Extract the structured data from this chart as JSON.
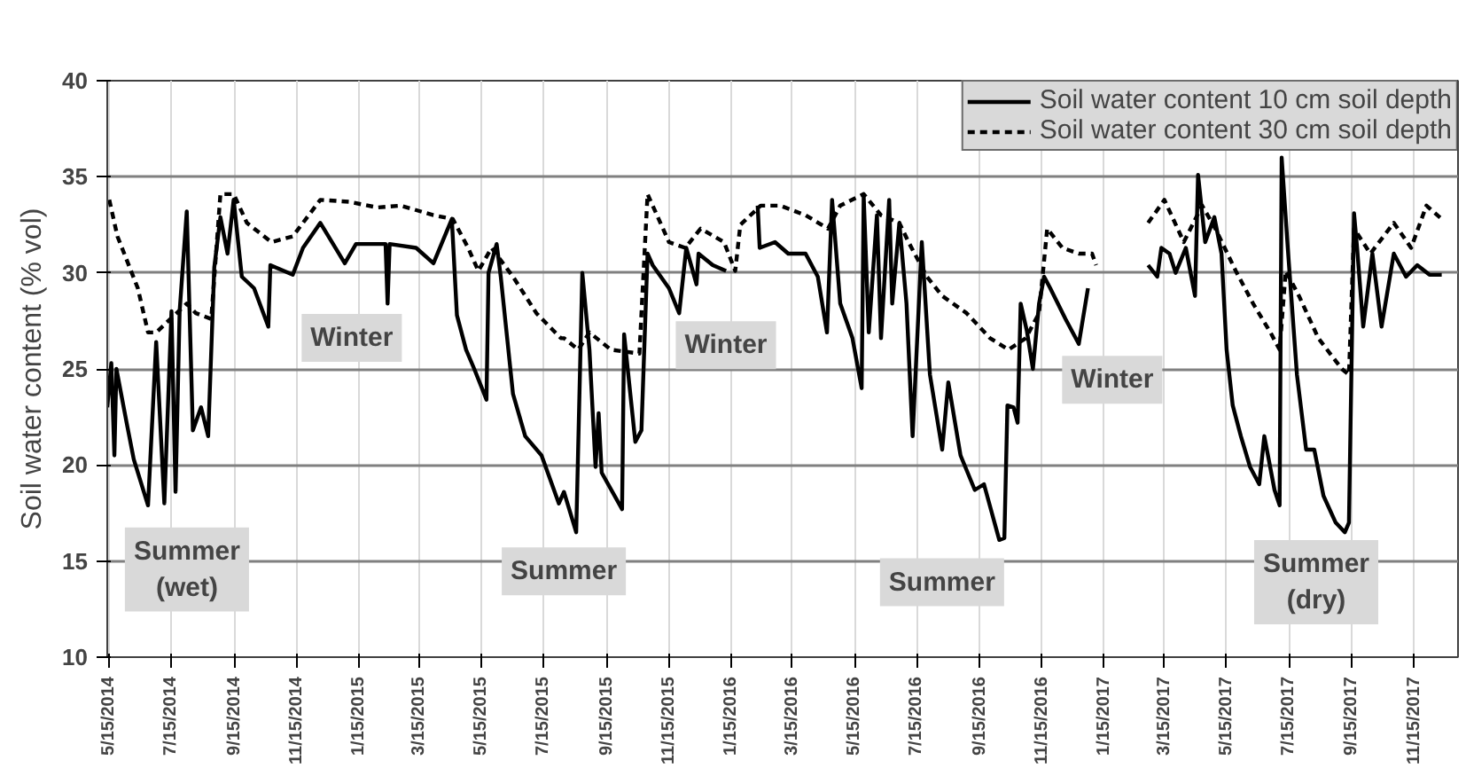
{
  "chart_data": {
    "type": "line",
    "ylabel": "Soil water content (% vol)",
    "xlim": [
      "2014-05-13",
      "2017-12-28"
    ],
    "ylim": [
      10,
      40
    ],
    "yticks": [
      10,
      15,
      20,
      25,
      30,
      35,
      40
    ],
    "xticks": [
      {
        "value": "2014-05-15",
        "label": "5/15/2014"
      },
      {
        "value": "2014-07-15",
        "label": "7/15/2014"
      },
      {
        "value": "2014-09-15",
        "label": "9/15/2014"
      },
      {
        "value": "2014-11-15",
        "label": "11/15/2014"
      },
      {
        "value": "2015-01-15",
        "label": "1/15/2015"
      },
      {
        "value": "2015-03-15",
        "label": "3/15/2015"
      },
      {
        "value": "2015-05-15",
        "label": "5/15/2015"
      },
      {
        "value": "2015-07-15",
        "label": "7/15/2015"
      },
      {
        "value": "2015-09-15",
        "label": "9/15/2015"
      },
      {
        "value": "2015-11-15",
        "label": "11/15/2015"
      },
      {
        "value": "2016-01-15",
        "label": "1/15/2016"
      },
      {
        "value": "2016-03-15",
        "label": "3/15/2016"
      },
      {
        "value": "2016-05-15",
        "label": "5/15/2016"
      },
      {
        "value": "2016-07-15",
        "label": "7/15/2016"
      },
      {
        "value": "2016-09-15",
        "label": "9/15/2016"
      },
      {
        "value": "2016-11-15",
        "label": "11/15/2016"
      },
      {
        "value": "2017-01-15",
        "label": "1/15/2017"
      },
      {
        "value": "2017-03-15",
        "label": "3/15/2017"
      },
      {
        "value": "2017-05-15",
        "label": "5/15/2017"
      },
      {
        "value": "2017-07-15",
        "label": "7/15/2017"
      },
      {
        "value": "2017-09-15",
        "label": "9/15/2017"
      },
      {
        "value": "2017-11-15",
        "label": "11/15/2017"
      }
    ],
    "grid": true,
    "legend": "top right",
    "series": [
      {
        "name": "Soil water content 10 cm soil depth",
        "color": "#000000",
        "line_style": "solid",
        "x": [
          "2014-05-13",
          "2014-05-17",
          "2014-05-20",
          "2014-05-22",
          "2014-06-01",
          "2014-06-08",
          "2014-06-22",
          "2014-06-30",
          "2014-07-08",
          "2014-07-15",
          "2014-07-19",
          "2014-07-23",
          "2014-07-30",
          "2014-08-05",
          "2014-08-13",
          "2014-08-20",
          "2014-08-26",
          "2014-09-01",
          "2014-09-08",
          "2014-09-14",
          "2014-09-22",
          "2014-10-04",
          "2014-10-18",
          "2014-10-20",
          "2014-11-11",
          "2014-11-21",
          "2014-12-08",
          "2015-01-01",
          "2015-01-12",
          "2015-02-10",
          "2015-02-12",
          "2015-02-14",
          "2015-03-12",
          "2015-03-29",
          "2015-04-16",
          "2015-04-21",
          "2015-04-30",
          "2015-05-08",
          "2015-05-20",
          "2015-05-22",
          "2015-05-30",
          "2015-06-03",
          "2015-06-15",
          "2015-06-27",
          "2015-07-13",
          "2015-07-30",
          "2015-08-04",
          "2015-08-16",
          "2015-08-22",
          "2015-08-29",
          "2015-09-04",
          "2015-09-07",
          "2015-09-10",
          "2015-09-30",
          "2015-10-02",
          "2015-10-13",
          "2015-10-19",
          "2015-10-25",
          "2015-10-30",
          "2015-11-15",
          "2015-11-25",
          "2015-12-02",
          "2015-12-12",
          "2015-12-14",
          "2015-12-28",
          "2016-01-10",
          "2016-01-25",
          "2016-02-10",
          "2016-02-12",
          "2016-02-27",
          "2016-03-11",
          "2016-03-28",
          "2016-04-09",
          "2016-04-18",
          "2016-04-23",
          "2016-05-01",
          "2016-05-13",
          "2016-05-22",
          "2016-05-24",
          "2016-05-29",
          "2016-06-06",
          "2016-06-10",
          "2016-06-18",
          "2016-06-21",
          "2016-06-28",
          "2016-07-05",
          "2016-07-11",
          "2016-07-20",
          "2016-07-28",
          "2016-08-09",
          "2016-08-15",
          "2016-08-27",
          "2016-09-10",
          "2016-09-19",
          "2016-10-04",
          "2016-10-09",
          "2016-10-12",
          "2016-10-18",
          "2016-10-22",
          "2016-10-25",
          "2016-10-31",
          "2016-11-06",
          "2016-11-12",
          "2016-11-17",
          "2016-11-23",
          "2016-12-08",
          "2016-12-21",
          "2016-12-30",
          "2017-02-01",
          "2017-02-27",
          "2017-03-08",
          "2017-03-12",
          "2017-03-20",
          "2017-03-26",
          "2017-04-05",
          "2017-04-14",
          "2017-04-17",
          "2017-04-24",
          "2017-05-03",
          "2017-05-10",
          "2017-05-15",
          "2017-05-21",
          "2017-05-29",
          "2017-06-07",
          "2017-06-16",
          "2017-06-21",
          "2017-07-01",
          "2017-07-06",
          "2017-07-08",
          "2017-07-14",
          "2017-07-23",
          "2017-08-01",
          "2017-08-09",
          "2017-08-18",
          "2017-08-30",
          "2017-09-08",
          "2017-09-12",
          "2017-09-17",
          "2017-09-20",
          "2017-09-26",
          "2017-10-05",
          "2017-10-14",
          "2017-10-26",
          "2017-11-07",
          "2017-11-18",
          "2017-11-30",
          "2017-12-12"
        ],
        "values": [
          23,
          25.3,
          20.5,
          25,
          22.2,
          20.3,
          17.9,
          26.4,
          18,
          28,
          18.6,
          28,
          33.2,
          21.8,
          23,
          21.5,
          30.3,
          32.9,
          31,
          33.8,
          29.8,
          29.2,
          27.2,
          30.4,
          29.9,
          31.3,
          32.6,
          30.5,
          31.5,
          31.5,
          28.4,
          31.5,
          31.3,
          30.5,
          32.8,
          27.8,
          26,
          25,
          23.4,
          30,
          31.5,
          29.8,
          23.7,
          21.5,
          20.5,
          18,
          18.6,
          16.5,
          30,
          26,
          19.9,
          22.7,
          19.6,
          17.7,
          26.8,
          21.2,
          21.8,
          31,
          30.4,
          29.2,
          27.9,
          31.3,
          29.4,
          31,
          30.4,
          30.1,
          null,
          33.5,
          31.3,
          31.6,
          31,
          31,
          29.8,
          26.9,
          33.8,
          28.4,
          26.6,
          24,
          34,
          26.9,
          33,
          26.6,
          33.8,
          28.4,
          32.6,
          28.4,
          21.5,
          31.6,
          24.7,
          20.8,
          24.3,
          20.5,
          18.7,
          19,
          16.1,
          16.2,
          23.1,
          23,
          22.2,
          28.4,
          27,
          25,
          28.4,
          29.8,
          29.2,
          27.6,
          26.3,
          29.2,
          null,
          30.4,
          29.8,
          31.3,
          31,
          30,
          31.3,
          28.8,
          35.1,
          31.6,
          32.9,
          31,
          26,
          23.1,
          21.5,
          19.9,
          19,
          21.5,
          18.7,
          17.9,
          36,
          31.3,
          24.7,
          20.8,
          20.8,
          18.4,
          17,
          16.5,
          17,
          33.1,
          31.3,
          27.2,
          31,
          27.2,
          31,
          29.8,
          30.4,
          29.9,
          29.9
        ]
      },
      {
        "name": "Soil water content 30 cm soil depth",
        "color": "#000000",
        "line_style": "dashed",
        "x": [
          "2014-05-15",
          "2014-05-23",
          "2014-06-12",
          "2014-06-22",
          "2014-06-30",
          "2014-07-14",
          "2014-07-30",
          "2014-08-08",
          "2014-08-23",
          "2014-09-01",
          "2014-09-14",
          "2014-09-27",
          "2014-10-21",
          "2014-11-11",
          "2014-12-08",
          "2015-01-05",
          "2015-02-02",
          "2015-02-25",
          "2015-03-29",
          "2015-04-17",
          "2015-05-02",
          "2015-05-12",
          "2015-05-25",
          "2015-06-15",
          "2015-07-08",
          "2015-08-01",
          "2015-08-04",
          "2015-08-18",
          "2015-08-29",
          "2015-09-19",
          "2015-10-17",
          "2015-10-25",
          "2015-11-15",
          "2015-12-01",
          "2015-12-16",
          "2016-01-08",
          "2016-01-19",
          "2016-01-24",
          "2016-02-13",
          "2016-03-03",
          "2016-03-28",
          "2016-04-19",
          "2016-05-01",
          "2016-05-24",
          "2016-06-10",
          "2016-06-28",
          "2016-07-07",
          "2016-07-25",
          "2016-08-09",
          "2016-09-02",
          "2016-09-25",
          "2016-10-13",
          "2016-10-30",
          "2016-11-12",
          "2016-11-20",
          "2016-12-05",
          "2016-12-21",
          "2017-01-03",
          "2017-01-07",
          "2017-02-01",
          "2017-02-27",
          "2017-03-15",
          "2017-04-03",
          "2017-04-21",
          "2017-05-04",
          "2017-05-24",
          "2017-06-10",
          "2017-06-27",
          "2017-07-06",
          "2017-07-12",
          "2017-07-25",
          "2017-08-13",
          "2017-09-05",
          "2017-09-12",
          "2017-09-17",
          "2017-10-03",
          "2017-10-26",
          "2017-11-12",
          "2017-11-27",
          "2017-12-12"
        ],
        "values": [
          33.8,
          31.9,
          29.2,
          26.9,
          26.9,
          27.6,
          28.4,
          27.9,
          27.6,
          34.1,
          34.1,
          32.6,
          31.6,
          31.9,
          33.8,
          33.7,
          33.4,
          33.5,
          33,
          32.8,
          31.3,
          30.1,
          31.3,
          29.8,
          27.9,
          26.6,
          26.6,
          26,
          26.9,
          26,
          25.8,
          34.1,
          31.6,
          31.3,
          32.3,
          31.6,
          30.1,
          32.5,
          33.5,
          33.5,
          33,
          32.3,
          33.5,
          34.1,
          33,
          32.6,
          31.6,
          29.8,
          28.8,
          27.9,
          26.6,
          26,
          26.6,
          27.9,
          32.3,
          31.3,
          31,
          31,
          30.4,
          null,
          32.6,
          33.8,
          31.6,
          33.5,
          32.3,
          30.1,
          28.4,
          26.9,
          26,
          30.1,
          28.8,
          26.6,
          25,
          24.7,
          32.3,
          31,
          32.6,
          31.3,
          33.5,
          32.8
        ]
      }
    ],
    "annotations": [
      "Summer\n(wet)",
      "Winter",
      "Summer",
      "Winter",
      "Summer",
      "Winter",
      "Summer\n(dry)"
    ]
  }
}
